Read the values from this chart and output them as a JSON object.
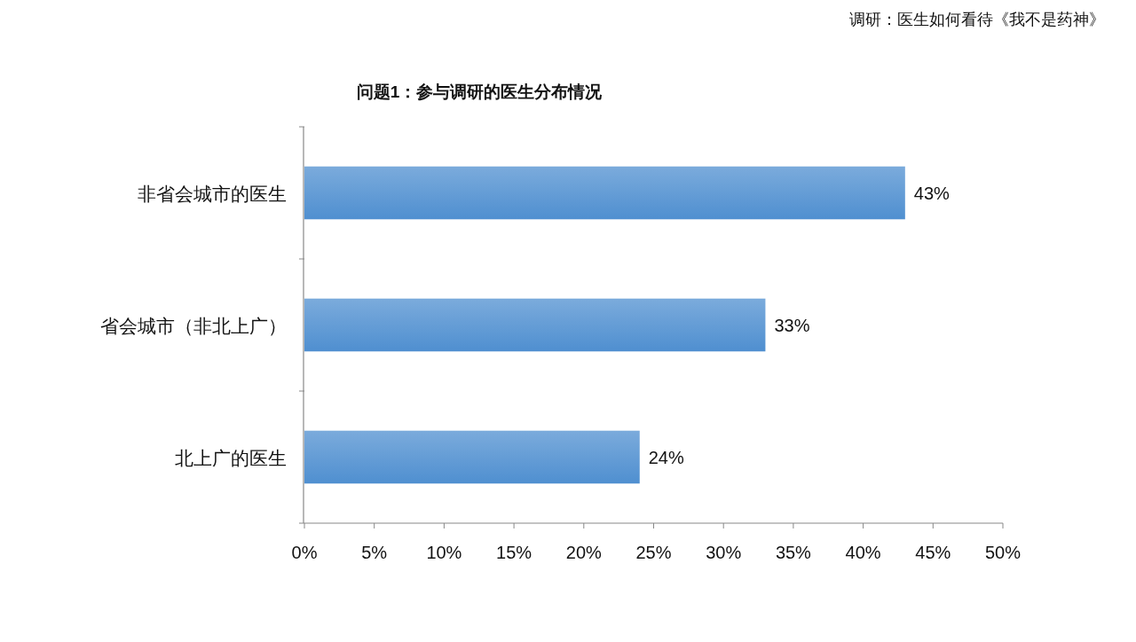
{
  "chart_data": {
    "type": "bar",
    "orientation": "horizontal",
    "title": "问题1：参与调研的医生分布情况",
    "annotations": [
      "调研：医生如何看待《我不是药神》"
    ],
    "categories": [
      "非省会城市的医生",
      "省会城市（非北上广）",
      "北上广的医生"
    ],
    "values": [
      43,
      33,
      24
    ],
    "color": "#4f8fd0",
    "data_labels": true,
    "value_labels": [
      "43%",
      "33%",
      "24%"
    ],
    "xlim": [
      0,
      50
    ],
    "xticks": [
      {
        "value": 0,
        "label": "0%"
      },
      {
        "value": 5,
        "label": "5%"
      },
      {
        "value": 10,
        "label": "10%"
      },
      {
        "value": 15,
        "label": "15%"
      },
      {
        "value": 20,
        "label": "20%"
      },
      {
        "value": 25,
        "label": "25%"
      },
      {
        "value": 30,
        "label": "30%"
      },
      {
        "value": 35,
        "label": "35%"
      },
      {
        "value": 40,
        "label": "40%"
      },
      {
        "value": 45,
        "label": "45%"
      },
      {
        "value": 50,
        "label": "50%"
      }
    ],
    "grid": false,
    "legend": false
  }
}
